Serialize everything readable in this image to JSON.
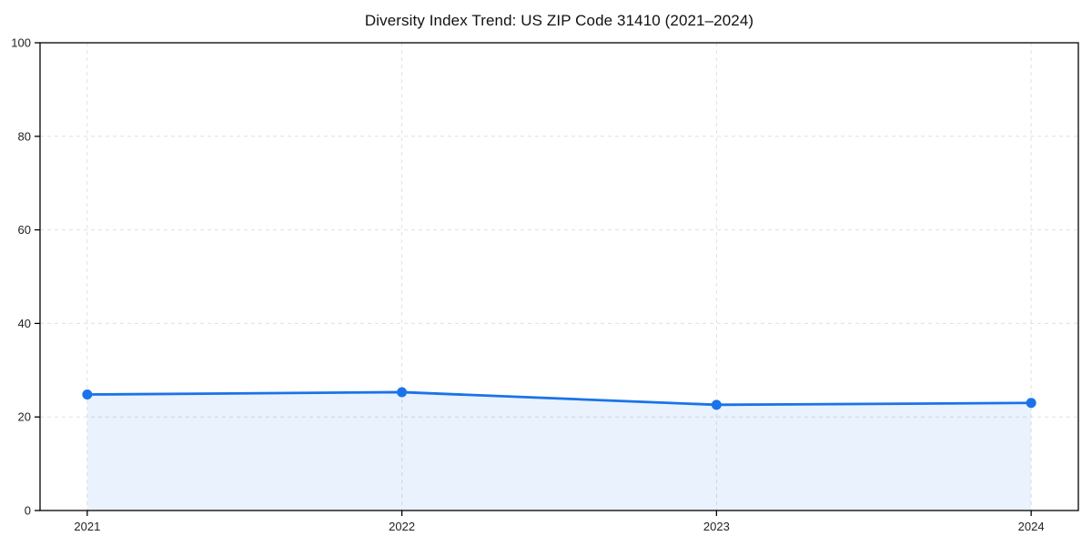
{
  "chart_data": {
    "type": "line",
    "title": "Diversity Index Trend: US ZIP Code 31410 (2021–2024)",
    "xlabel": "",
    "ylabel": "",
    "categories": [
      2021,
      2022,
      2023,
      2024
    ],
    "series": [
      {
        "name": "Diversity Index",
        "values": [
          24.8,
          25.3,
          22.6,
          23.0
        ]
      }
    ],
    "ylim": [
      0,
      100
    ],
    "yticks": [
      0,
      20,
      40,
      60,
      80,
      100
    ],
    "x_margin": 0.15,
    "grid": true,
    "grid_style": "dashed",
    "area_fill": true,
    "legend": "none",
    "colors": {
      "line": "#1a73e8",
      "marker": "#1a73e8",
      "fill": "#1a73e8",
      "fill_opacity": 0.09,
      "grid": "#e0e0e0",
      "spine": "#000000",
      "text": "#222222"
    }
  }
}
